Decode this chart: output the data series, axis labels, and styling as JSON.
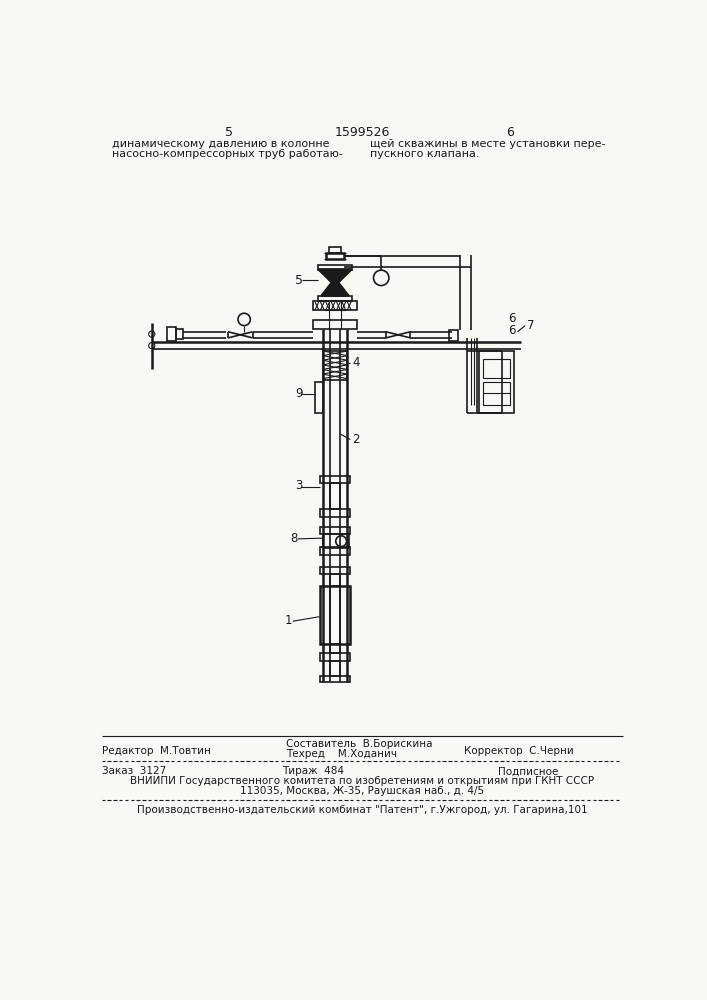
{
  "bg_color": "#f8f8f5",
  "line_color": "#1a1a1a",
  "text_color": "#1a1a1a",
  "page_number_left": "5",
  "patent_number": "1599526",
  "page_number_right": "6",
  "top_text_left": [
    "динамическому давлению в колонне",
    "насосно-компрессорных труб работаю-"
  ],
  "top_text_right": [
    "щей скважины в месте установки пере-",
    "пускного клапана."
  ],
  "bottom_row1_left": "Редактор  М.Товтин",
  "bottom_row1_center_top": "Составитель  В.Борискина",
  "bottom_row1_center_bot": "Техред    М.Ходанич",
  "bottom_row1_right": "Корректор  С.Черни",
  "bottom_row2_left": "Заказ  3127",
  "bottom_row2_center": "Тираж  484",
  "bottom_row2_right": "Подписное",
  "bottom_row3": "ВНИИПИ Государственного комитета по изобретениям и открытиям при ГКНТ СССР",
  "bottom_row4": "113035, Москва, Ж-35, Раушская наб., д. 4/5",
  "bottom_row5": "Производственно-издательский комбинат \"Патент\", г.Ужгород, ул. Гагарина,101"
}
